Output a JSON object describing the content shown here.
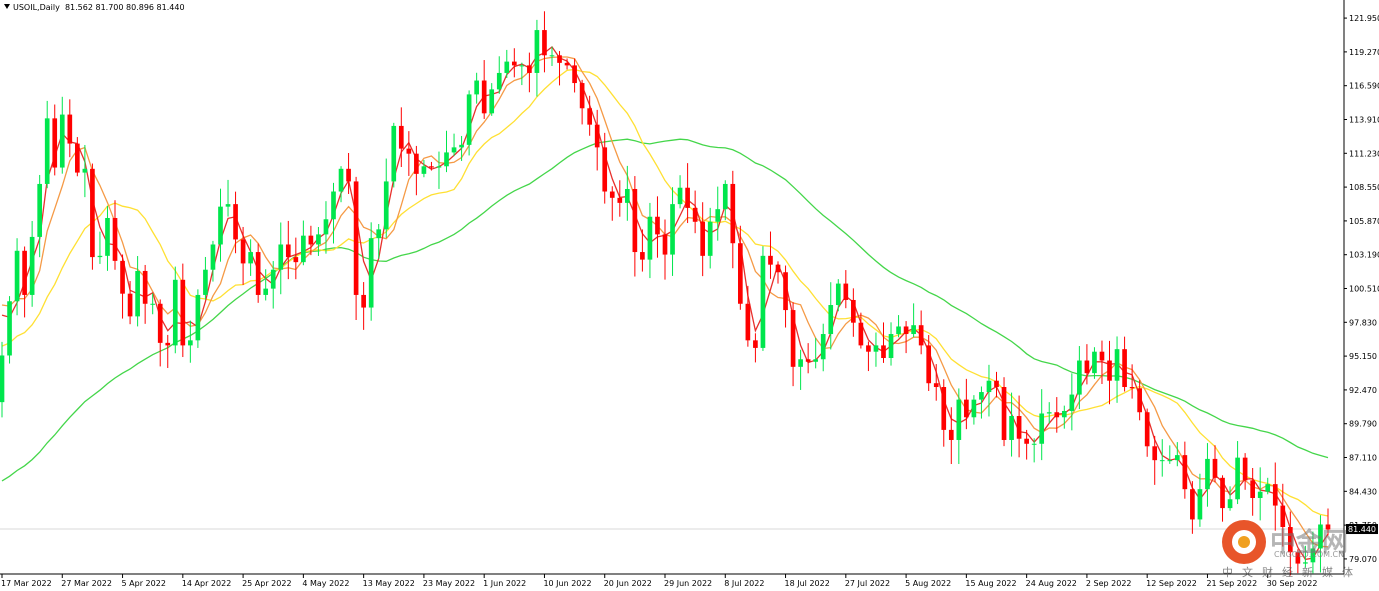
{
  "header": {
    "symbol": "USOIL,Daily",
    "ohlc": "81.562 81.700 80.896 81.440"
  },
  "watermark": {
    "name": "中金网",
    "url": "CNGOLD.COM.CN",
    "sub": "中文财经新媒体"
  },
  "chart_data": {
    "type": "candlestick",
    "title": "",
    "xlabel": "",
    "ylabel": "",
    "ylim": [
      78.35,
      122.75
    ],
    "current_price": 81.44,
    "y_ticks": [
      "121.950",
      "119.270",
      "116.590",
      "113.910",
      "111.230",
      "108.550",
      "105.870",
      "103.190",
      "100.510",
      "97.830",
      "95.150",
      "92.470",
      "89.790",
      "87.110",
      "84.430",
      "81.750",
      "79.070"
    ],
    "x_ticks": [
      {
        "i": 0,
        "label": "17 Mar 2022"
      },
      {
        "i": 8,
        "label": "27 Mar 2022"
      },
      {
        "i": 16,
        "label": "5 Apr 2022"
      },
      {
        "i": 24,
        "label": "14 Apr 2022"
      },
      {
        "i": 32,
        "label": "25 Apr 2022"
      },
      {
        "i": 40,
        "label": "4 May 2022"
      },
      {
        "i": 48,
        "label": "13 May 2022"
      },
      {
        "i": 56,
        "label": "23 May 2022"
      },
      {
        "i": 64,
        "label": "1 Jun 2022"
      },
      {
        "i": 72,
        "label": "10 Jun 2022"
      },
      {
        "i": 80,
        "label": "20 Jun 2022"
      },
      {
        "i": 88,
        "label": "29 Jun 2022"
      },
      {
        "i": 96,
        "label": "8 Jul 2022"
      },
      {
        "i": 104,
        "label": "18 Jul 2022"
      },
      {
        "i": 112,
        "label": "27 Jul 2022"
      },
      {
        "i": 120,
        "label": "5 Aug 2022"
      },
      {
        "i": 128,
        "label": "15 Aug 2022"
      },
      {
        "i": 136,
        "label": "24 Aug 2022"
      },
      {
        "i": 144,
        "label": "2 Sep 2022"
      },
      {
        "i": 152,
        "label": "12 Sep 2022"
      },
      {
        "i": 160,
        "label": "21 Sep 2022"
      },
      {
        "i": 168,
        "label": "30 Sep 2022"
      }
    ],
    "close": [
      95.2,
      99.5,
      103.5,
      100.0,
      104.6,
      108.8,
      114.0,
      110.1,
      114.3,
      112.0,
      109.7,
      110.0,
      103.0,
      103.1,
      106.1,
      102.7,
      100.1,
      98.3,
      101.9,
      99.3,
      99.3,
      96.2,
      96.0,
      101.2,
      96.0,
      96.4,
      100.0,
      102.0,
      104.0,
      107.0,
      107.2,
      104.4,
      102.5,
      103.4,
      100.0,
      100.5,
      102.0,
      104.0,
      103.0,
      102.6,
      104.7,
      104.0,
      104.8,
      106.0,
      108.2,
      110.0,
      109.0,
      100.0,
      99.0,
      104.5,
      105.2,
      109.0,
      113.4,
      111.6,
      111.2,
      109.6,
      110.2,
      110.1,
      110.2,
      111.3,
      111.7,
      111.9,
      115.9,
      117.0,
      114.4,
      116.3,
      117.6,
      118.5,
      118.2,
      118.2,
      117.6,
      121.0,
      119.0,
      119.0,
      118.4,
      118.2,
      116.8,
      114.8,
      113.5,
      111.7,
      108.2,
      107.7,
      107.3,
      108.4,
      103.4,
      102.8,
      106.2,
      104.8,
      103.2,
      107.2,
      108.5,
      106.9,
      105.8,
      103.1,
      105.8,
      106.8,
      108.8,
      104.1,
      99.3,
      96.4,
      95.8,
      103.1,
      102.4,
      101.8,
      98.8,
      94.3,
      94.9,
      94.7,
      94.9,
      96.9,
      99.2,
      100.9,
      99.6,
      97.8,
      96.0,
      95.5,
      96.0,
      95.0,
      96.9,
      97.5,
      96.9,
      97.6,
      96.0,
      93.0,
      92.7,
      89.3,
      88.5,
      91.7,
      90.3,
      91.7,
      92.3,
      93.2,
      92.7,
      88.5,
      90.4,
      88.6,
      88.2,
      88.2,
      90.6,
      90.7,
      90.3,
      90.8,
      92.1,
      94.8,
      93.8,
      95.5,
      94.8,
      93.2,
      95.7,
      92.7,
      92.6,
      90.7,
      88.0,
      86.9,
      86.9,
      86.9,
      87.3,
      84.6,
      82.2,
      84.6,
      87.0,
      85.5,
      83.1,
      83.8,
      87.1,
      85.3,
      83.9,
      84.4,
      85.0,
      83.3,
      81.6,
      79.6,
      78.7,
      78.8,
      79.9,
      81.8,
      81.4
    ]
  },
  "colors": {
    "bull": "#00e64d",
    "bear": "#ff0000",
    "ma_fast": "#e8302c",
    "ma_mid": "#f59a46",
    "ma_slow": "#ffe033",
    "ma_long": "#44d64a",
    "axis": "#000000",
    "price_line": "#d8d8d8",
    "price_tag_bg": "#000000",
    "price_tag_text": "#ffffff"
  }
}
